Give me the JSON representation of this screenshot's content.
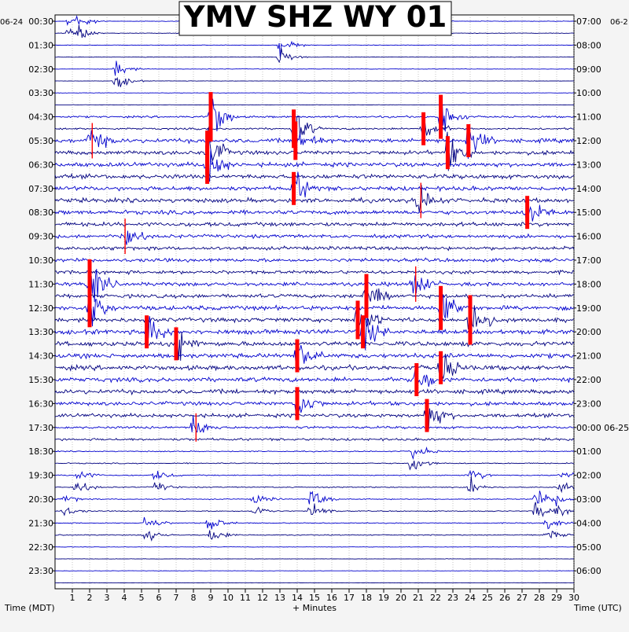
{
  "chart_data": {
    "type": "line",
    "title": "YMV SHZ WY 01",
    "left_date_label": "06-24",
    "right_date_label": "06-25",
    "right_top_date_label": "06-2",
    "xlabel": "+ Minutes",
    "left_axis_label": "Time (MDT)",
    "right_axis_label": "Time (UTC)",
    "x_ticks": [
      1,
      2,
      3,
      4,
      5,
      6,
      7,
      8,
      9,
      10,
      11,
      12,
      13,
      14,
      15,
      16,
      17,
      18,
      19,
      20,
      21,
      22,
      23,
      24,
      25,
      26,
      27,
      28,
      29,
      30
    ],
    "xlim": [
      0,
      30
    ],
    "left_hour_labels": [
      "00:30",
      "01:30",
      "02:30",
      "03:30",
      "04:30",
      "05:30",
      "06:30",
      "07:30",
      "08:30",
      "09:30",
      "10:30",
      "11:30",
      "12:30",
      "13:30",
      "14:30",
      "15:30",
      "16:30",
      "17:30",
      "18:30",
      "19:30",
      "20:30",
      "21:30",
      "22:30",
      "23:30"
    ],
    "right_hour_labels": [
      "07:00",
      "08:00",
      "09:00",
      "10:00",
      "11:00",
      "12:00",
      "13:00",
      "14:00",
      "15:00",
      "16:00",
      "17:00",
      "18:00",
      "19:00",
      "20:00",
      "21:00",
      "22:00",
      "23:00",
      "00:00 06-25",
      "01:00",
      "02:00",
      "03:00",
      "04:00",
      "05:00",
      "06:00"
    ],
    "trace_count": 48,
    "trace_colors": [
      "#0000cd",
      "#000080"
    ],
    "clip_color": "#ff0000",
    "grid": true,
    "grid_style": "dotted",
    "noise_by_hour": [
      0.1,
      0.1,
      0.08,
      0.08,
      0.35,
      0.75,
      0.8,
      0.8,
      0.75,
      0.65,
      0.65,
      0.7,
      0.8,
      0.85,
      0.85,
      0.8,
      0.7,
      0.45,
      0.2,
      0.2,
      0.18,
      0.18,
      0.08,
      0.06
    ],
    "events": [
      {
        "hour": 0,
        "min": 0.8,
        "amp": 1.2
      },
      {
        "hour": 0,
        "min": 1.4,
        "amp": 0.8
      },
      {
        "hour": 1,
        "min": 13.0,
        "amp": 1.5
      },
      {
        "hour": 2,
        "min": 3.5,
        "amp": 1.5
      },
      {
        "hour": 4,
        "min": 9.0,
        "amp": 4.5,
        "clip": true
      },
      {
        "hour": 4,
        "min": 13.8,
        "amp": 3.5,
        "clip": true
      },
      {
        "hour": 4,
        "min": 22.3,
        "amp": 4.0,
        "clip": true
      },
      {
        "hour": 4,
        "min": 21.3,
        "amp": 3.0,
        "clip": true
      },
      {
        "hour": 5,
        "min": 2.0,
        "amp": 2.5,
        "clip": true
      },
      {
        "hour": 5,
        "min": 8.8,
        "amp": 4.0,
        "clip": true
      },
      {
        "hour": 5,
        "min": 13.9,
        "amp": 3.5,
        "clip": true
      },
      {
        "hour": 5,
        "min": 22.7,
        "amp": 3.0,
        "clip": true
      },
      {
        "hour": 5,
        "min": 23.9,
        "amp": 3.0,
        "clip": true
      },
      {
        "hour": 6,
        "min": 8.8,
        "amp": 3.5,
        "clip": true
      },
      {
        "hour": 7,
        "min": 13.8,
        "amp": 3.0,
        "clip": true
      },
      {
        "hour": 7,
        "min": 21.0,
        "amp": 2.5,
        "clip": true
      },
      {
        "hour": 8,
        "min": 27.3,
        "amp": 3.0,
        "clip": true
      },
      {
        "hour": 9,
        "min": 3.9,
        "amp": 2.5,
        "clip": true
      },
      {
        "hour": 11,
        "min": 2.0,
        "amp": 4.5,
        "clip": true
      },
      {
        "hour": 11,
        "min": 18.0,
        "amp": 4.0,
        "clip": true
      },
      {
        "hour": 11,
        "min": 20.7,
        "amp": 2.5,
        "clip": true
      },
      {
        "hour": 12,
        "min": 2.0,
        "amp": 3.5,
        "clip": true
      },
      {
        "hour": 12,
        "min": 17.5,
        "amp": 3.5,
        "clip": true
      },
      {
        "hour": 12,
        "min": 22.3,
        "amp": 4.0,
        "clip": true
      },
      {
        "hour": 12,
        "min": 24.0,
        "amp": 4.5,
        "clip": true
      },
      {
        "hour": 13,
        "min": 5.3,
        "amp": 3.0,
        "clip": true
      },
      {
        "hour": 13,
        "min": 7.0,
        "amp": 3.0,
        "clip": true
      },
      {
        "hour": 13,
        "min": 17.8,
        "amp": 3.0,
        "clip": true
      },
      {
        "hour": 14,
        "min": 14.0,
        "amp": 3.0,
        "clip": true
      },
      {
        "hour": 14,
        "min": 22.3,
        "amp": 3.0,
        "clip": true
      },
      {
        "hour": 15,
        "min": 20.9,
        "amp": 3.0,
        "clip": true
      },
      {
        "hour": 16,
        "min": 14.0,
        "amp": 3.0,
        "clip": true
      },
      {
        "hour": 16,
        "min": 21.5,
        "amp": 3.0,
        "clip": true
      },
      {
        "hour": 17,
        "min": 8.0,
        "amp": 2.0,
        "clip": true
      },
      {
        "hour": 18,
        "min": 20.6,
        "amp": 1.6
      },
      {
        "hour": 19,
        "min": 1.2,
        "amp": 1.2
      },
      {
        "hour": 19,
        "min": 5.8,
        "amp": 0.9
      },
      {
        "hour": 19,
        "min": 24.0,
        "amp": 1.3
      },
      {
        "hour": 19,
        "min": 29.2,
        "amp": 1.0
      },
      {
        "hour": 20,
        "min": 0.5,
        "amp": 0.8
      },
      {
        "hour": 20,
        "min": 14.8,
        "amp": 1.6
      },
      {
        "hour": 20,
        "min": 11.5,
        "amp": 1.0
      },
      {
        "hour": 20,
        "min": 27.8,
        "amp": 1.5
      },
      {
        "hour": 20,
        "min": 29.0,
        "amp": 0.8
      },
      {
        "hour": 21,
        "min": 5.2,
        "amp": 1.3
      },
      {
        "hour": 21,
        "min": 8.9,
        "amp": 1.4
      },
      {
        "hour": 21,
        "min": 28.4,
        "amp": 1.0
      }
    ]
  }
}
